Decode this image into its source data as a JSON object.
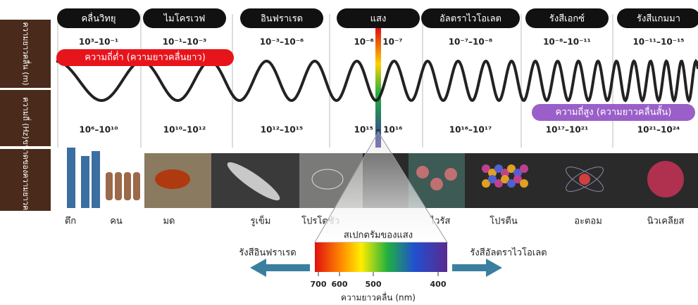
{
  "title_bands": [
    {
      "name": "คลื่นวิทยุ",
      "wavelength": "10³–10⁻¹",
      "frequency": "10⁶–10¹⁰"
    },
    {
      "name": "ไมโครเวฟ",
      "wavelength": "10⁻¹–10⁻³",
      "frequency": "10¹⁰–10¹²"
    },
    {
      "name": "อินฟราเรด",
      "wavelength": "10⁻³–10⁻⁶",
      "frequency": "10¹²–10¹⁵"
    },
    {
      "name": "แสง",
      "wavelength": "10⁻⁶   10⁻⁷",
      "frequency": "10¹⁵ – 10¹⁶"
    },
    {
      "name": "อัลตราไวโอเลต",
      "wavelength": "10⁻⁷–10⁻⁸",
      "frequency": "10¹⁶–10¹⁷"
    },
    {
      "name": "รังสีเอกซ์",
      "wavelength": "10⁻⁸–10⁻¹¹",
      "frequency": "10¹⁷–10²¹"
    },
    {
      "name": "รังสีแกมมา",
      "wavelength": "10⁻¹¹–10⁻¹⁵",
      "frequency": "10²¹–10²⁴"
    }
  ],
  "row_labels": {
    "wavelength": "ความยาวคลื่น (m)",
    "frequency": "ความถี่ (Hz)",
    "size": "ขนาดของความยาวคลื่น"
  },
  "low_frequency_label": "ความถี่ต่ำ (ความยาวคลื่นยาว)",
  "high_frequency_label": "ความถี่สูง (ความยาวคลื่นสั้น)",
  "objects": [
    "ตึก",
    "คน",
    "มด",
    "รูเข็ม",
    "โปรโตซัว",
    "ไวรัส",
    "โปรตีน",
    "อะตอม",
    "นิวเคลียส"
  ],
  "visible_spectrum": {
    "title": "สเปกตรัมของแสง",
    "left_label": "รังสีอินฟราเรด",
    "right_label": "รังสีอัลตราไวโอเลต",
    "ticks": [
      700,
      600,
      500,
      400
    ],
    "axis_label": "ความยาวคลื่น (nm)"
  }
}
